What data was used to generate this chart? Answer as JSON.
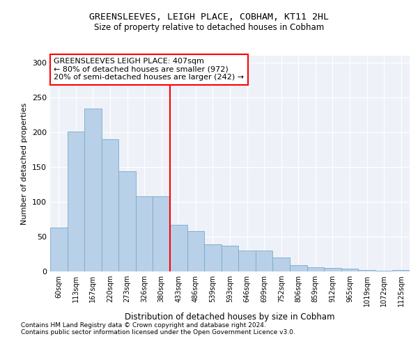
{
  "title": "GREENSLEEVES, LEIGH PLACE, COBHAM, KT11 2HL",
  "subtitle": "Size of property relative to detached houses in Cobham",
  "xlabel": "Distribution of detached houses by size in Cobham",
  "ylabel": "Number of detached properties",
  "categories": [
    "60sqm",
    "113sqm",
    "167sqm",
    "220sqm",
    "273sqm",
    "326sqm",
    "380sqm",
    "433sqm",
    "486sqm",
    "539sqm",
    "593sqm",
    "646sqm",
    "699sqm",
    "752sqm",
    "806sqm",
    "859sqm",
    "912sqm",
    "965sqm",
    "1019sqm",
    "1072sqm",
    "1125sqm"
  ],
  "values": [
    63,
    201,
    234,
    190,
    144,
    108,
    108,
    67,
    58,
    39,
    37,
    30,
    30,
    20,
    9,
    6,
    5,
    4,
    2,
    1,
    2
  ],
  "bar_color": "#b8d0e8",
  "bar_edge_color": "#7aaac8",
  "vline_color": "red",
  "vline_x_index": 7,
  "annotation_text": "GREENSLEEVES LEIGH PLACE: 407sqm\n← 80% of detached houses are smaller (972)\n20% of semi-detached houses are larger (242) →",
  "annotation_box_color": "white",
  "annotation_box_edge_color": "red",
  "ylim": [
    0,
    310
  ],
  "yticks": [
    0,
    50,
    100,
    150,
    200,
    250,
    300
  ],
  "background_color": "#eef2f8",
  "grid_color": "#ffffff",
  "footnote1": "Contains HM Land Registry data © Crown copyright and database right 2024.",
  "footnote2": "Contains public sector information licensed under the Open Government Licence v3.0."
}
